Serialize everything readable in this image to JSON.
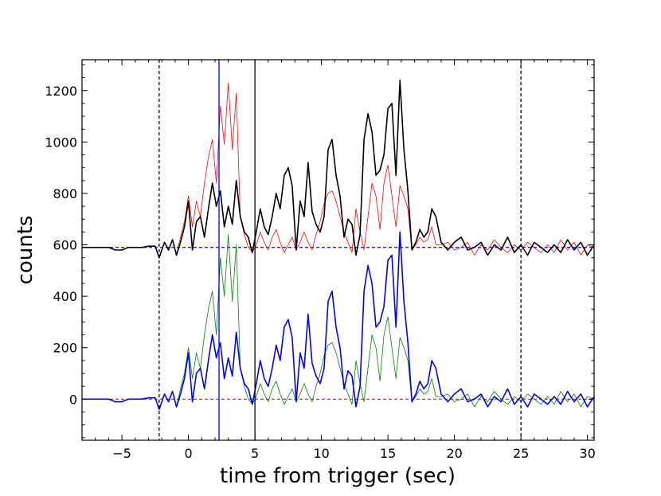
{
  "chart_data": {
    "type": "line",
    "title": "",
    "xlabel": "time from trigger (sec)",
    "ylabel": "counts",
    "xlim": [
      -8,
      30.5
    ],
    "ylim": [
      -160,
      1320
    ],
    "xticks": [
      -5,
      0,
      5,
      10,
      15,
      20,
      25,
      30
    ],
    "yticks": [
      0,
      200,
      400,
      600,
      800,
      1000,
      1200
    ],
    "xtick_labels": [
      "−5",
      "0",
      "5",
      "10",
      "15",
      "20",
      "25",
      "30"
    ],
    "ytick_labels": [
      "0",
      "200",
      "400",
      "600",
      "800",
      "1000",
      "1200"
    ],
    "grid": false,
    "legend": "none",
    "offset": 590,
    "vertical_lines": [
      {
        "x": -2.2,
        "color": "#000000",
        "style": "dashed"
      },
      {
        "x": 2.3,
        "color": "#0000ff",
        "style": "solid"
      },
      {
        "x": 5.0,
        "color": "#000000",
        "style": "solid"
      },
      {
        "x": 25.0,
        "color": "#000000",
        "style": "dashed"
      }
    ],
    "horizontal_lines": [
      {
        "y": 590,
        "color": "#0000ff",
        "style": "dashed"
      },
      {
        "y": 0,
        "color": "#ff0000",
        "style": "dashed"
      }
    ],
    "series_styles": [
      {
        "color": "#ff0000",
        "width": 0.8,
        "offset_series": true
      },
      {
        "color": "#000000",
        "width": 1.6,
        "offset_series": true
      },
      {
        "color": "#008000",
        "width": 0.8,
        "offset_series": false
      },
      {
        "color": "#0000ff",
        "width": 1.6,
        "offset_series": false
      }
    ],
    "x": [
      -8,
      -7.5,
      -7,
      -6.5,
      -6,
      -5.5,
      -5,
      -4.5,
      -4,
      -3.5,
      -3,
      -2.5,
      -2.2,
      -1.8,
      -1.5,
      -1.2,
      -0.9,
      -0.6,
      -0.3,
      0,
      0.3,
      0.6,
      0.9,
      1.2,
      1.5,
      1.8,
      2.1,
      2.4,
      2.7,
      3,
      3.3,
      3.6,
      3.9,
      4.2,
      4.5,
      4.8,
      5.1,
      5.4,
      5.7,
      6,
      6.3,
      6.6,
      6.9,
      7.2,
      7.5,
      7.8,
      8.1,
      8.4,
      8.7,
      9,
      9.3,
      9.6,
      9.9,
      10.2,
      10.5,
      10.8,
      11.1,
      11.4,
      11.7,
      12,
      12.3,
      12.6,
      12.9,
      13.2,
      13.5,
      13.8,
      14.1,
      14.4,
      14.7,
      15,
      15.3,
      15.6,
      15.9,
      16.2,
      16.5,
      16.8,
      17.1,
      17.4,
      17.7,
      18,
      18.3,
      18.6,
      19,
      19.5,
      20,
      20.5,
      21,
      21.5,
      22,
      22.5,
      23,
      23.5,
      24,
      24.5,
      25,
      25.5,
      26,
      26.5,
      27,
      27.5,
      28,
      28.5,
      29,
      29.5,
      30,
      30.5
    ],
    "bright": [
      0,
      0,
      0,
      0,
      0,
      -10,
      -10,
      0,
      0,
      0,
      5,
      5,
      -40,
      20,
      -10,
      30,
      -30,
      40,
      100,
      200,
      80,
      180,
      120,
      250,
      350,
      420,
      250,
      550,
      400,
      640,
      380,
      600,
      120,
      50,
      0,
      -20,
      10,
      60,
      20,
      -10,
      40,
      70,
      20,
      -20,
      10,
      40,
      -10,
      20,
      60,
      20,
      -10,
      50,
      100,
      170,
      210,
      220,
      180,
      120,
      60,
      20,
      -20,
      150,
      60,
      -10,
      120,
      250,
      200,
      70,
      250,
      320,
      200,
      80,
      240,
      200,
      150,
      -10,
      10,
      40,
      20,
      30,
      80,
      10,
      10,
      20,
      -10,
      0,
      20,
      -30,
      10,
      -10,
      30,
      0,
      -20,
      10,
      -10,
      20,
      0,
      -20,
      10,
      -20,
      30,
      -10,
      20,
      -30,
      10,
      0
    ],
    "total": [
      0,
      0,
      0,
      0,
      0,
      -10,
      -10,
      0,
      0,
      0,
      5,
      5,
      -40,
      20,
      -10,
      30,
      -30,
      20,
      80,
      180,
      -10,
      100,
      120,
      40,
      150,
      250,
      160,
      220,
      80,
      160,
      90,
      260,
      120,
      60,
      40,
      -20,
      60,
      150,
      80,
      50,
      120,
      210,
      150,
      280,
      310,
      240,
      -10,
      180,
      120,
      330,
      140,
      90,
      60,
      120,
      380,
      420,
      280,
      200,
      40,
      110,
      90,
      -30,
      50,
      420,
      520,
      450,
      280,
      300,
      360,
      540,
      560,
      280,
      650,
      380,
      220,
      -10,
      20,
      70,
      40,
      60,
      150,
      120,
      20,
      -10,
      20,
      40,
      -10,
      0,
      20,
      -30,
      10,
      -10,
      40,
      -20,
      10,
      -30,
      20,
      0,
      -20,
      10,
      -20,
      30,
      -10,
      20,
      -30,
      10,
      0
    ]
  }
}
